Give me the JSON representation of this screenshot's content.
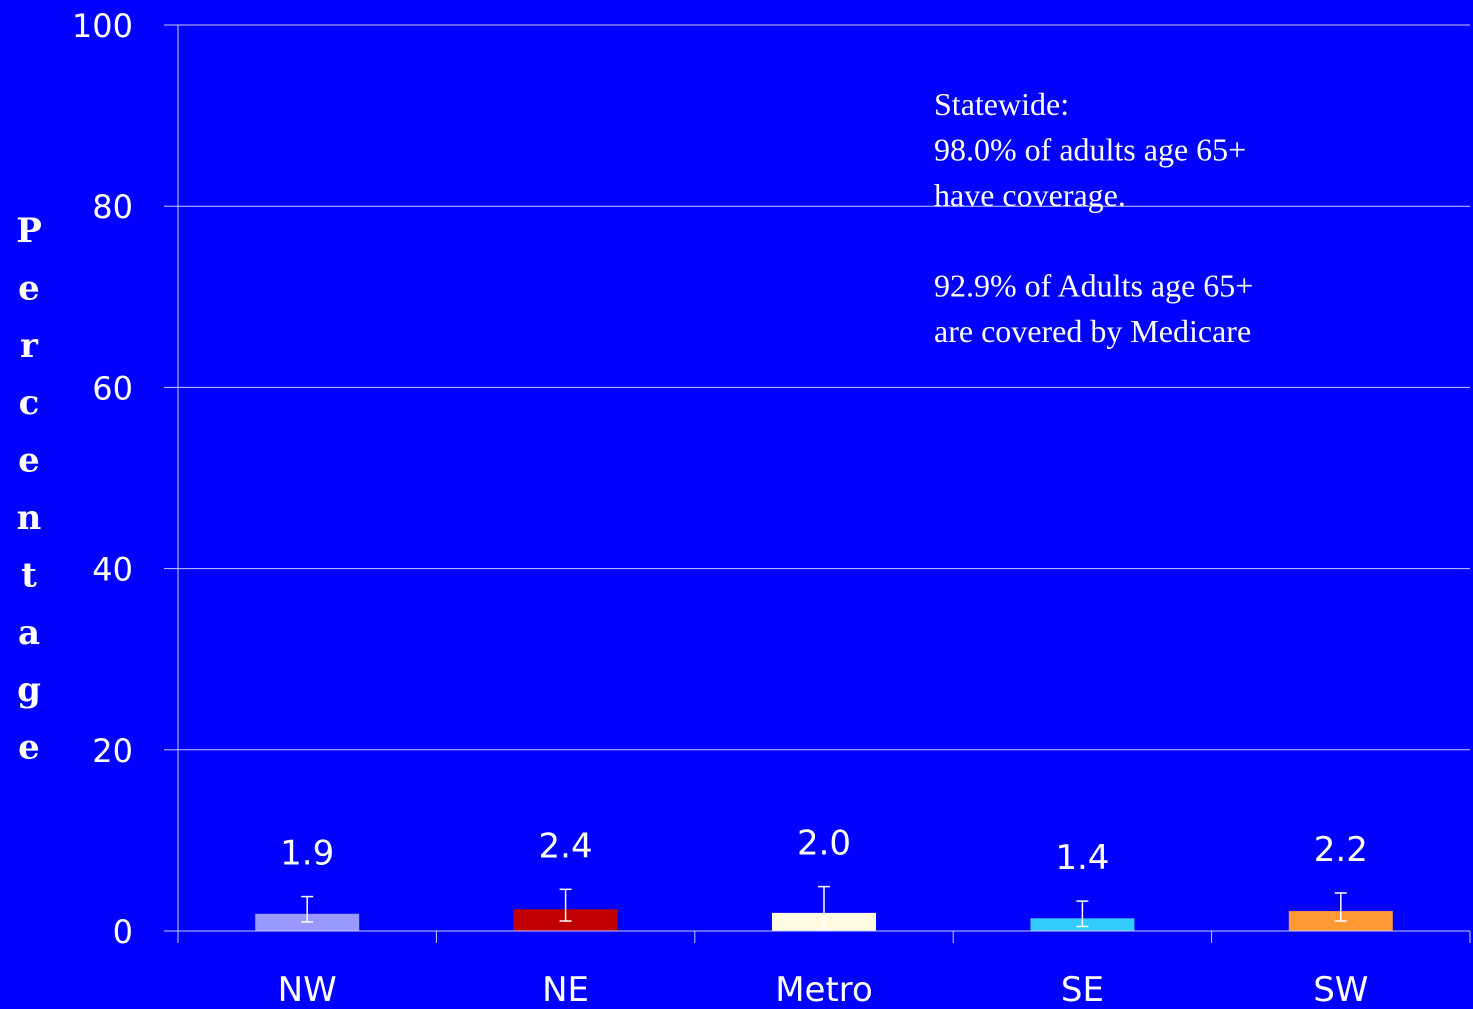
{
  "chart_data": {
    "type": "bar",
    "title": "",
    "xlabel": "",
    "ylabel": "Percentage",
    "ylim": [
      0,
      100
    ],
    "yticks": [
      0,
      20,
      40,
      60,
      80,
      100
    ],
    "grid": true,
    "legend": "none",
    "categories": [
      "NW",
      "NE",
      "Metro",
      "SE",
      "SW"
    ],
    "values": [
      1.9,
      2.4,
      2.0,
      1.4,
      2.2
    ],
    "data_labels": [
      "1.9",
      "2.4",
      "2.0",
      "1.4",
      "2.2"
    ],
    "error_bars": [
      {
        "low": 1.0,
        "high": 3.8
      },
      {
        "low": 1.1,
        "high": 4.6
      },
      {
        "low": 0.2,
        "high": 4.9
      },
      {
        "low": 0.5,
        "high": 3.3
      },
      {
        "low": 1.1,
        "high": 4.2
      }
    ],
    "bar_colors": [
      "#9999ff",
      "#c00000",
      "#fffbe0",
      "#33ccff",
      "#ff9933"
    ],
    "annotation": [
      "Statewide:",
      "98.0% of adults age 65+",
      "have coverage.",
      "",
      "92.9% of Adults age 65+",
      "are covered by Medicare"
    ]
  },
  "colors": {
    "background": "#0000fe",
    "axis": "#c8c8ff",
    "gridline": "#c8c8ff",
    "text": "#ffffff",
    "error_bar": "#ffffff"
  }
}
